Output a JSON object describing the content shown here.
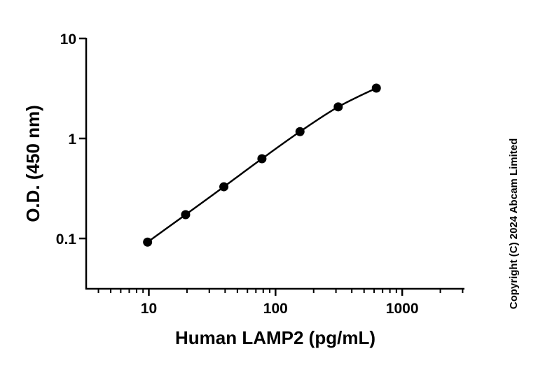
{
  "chart_data": {
    "type": "line",
    "x_label": "Human LAMP2 (pg/mL)",
    "y_label": "O.D. (450 nm)",
    "copyright": "Copyright (C) 2024 Abcam Limited",
    "x_scale": "log",
    "y_scale": "log",
    "x": [
      9.77,
      19.5,
      39.1,
      78.1,
      156,
      312.5,
      625
    ],
    "series": [
      {
        "color": "#000000",
        "values": [
          0.092,
          0.173,
          0.329,
          0.627,
          1.17,
          2.07,
          3.19
        ]
      }
    ],
    "xlim": [
      3.2,
      3100
    ],
    "ylim": [
      0.0314,
      10
    ],
    "xticks": [
      10,
      100,
      1000
    ],
    "xminorticks": [
      4,
      5,
      6,
      7,
      8,
      9,
      20,
      30,
      40,
      50,
      60,
      70,
      80,
      90,
      200,
      300,
      400,
      500,
      600,
      700,
      800,
      900,
      2000,
      3000
    ],
    "yticks": [
      0.1,
      1,
      10
    ],
    "grid": false
  }
}
